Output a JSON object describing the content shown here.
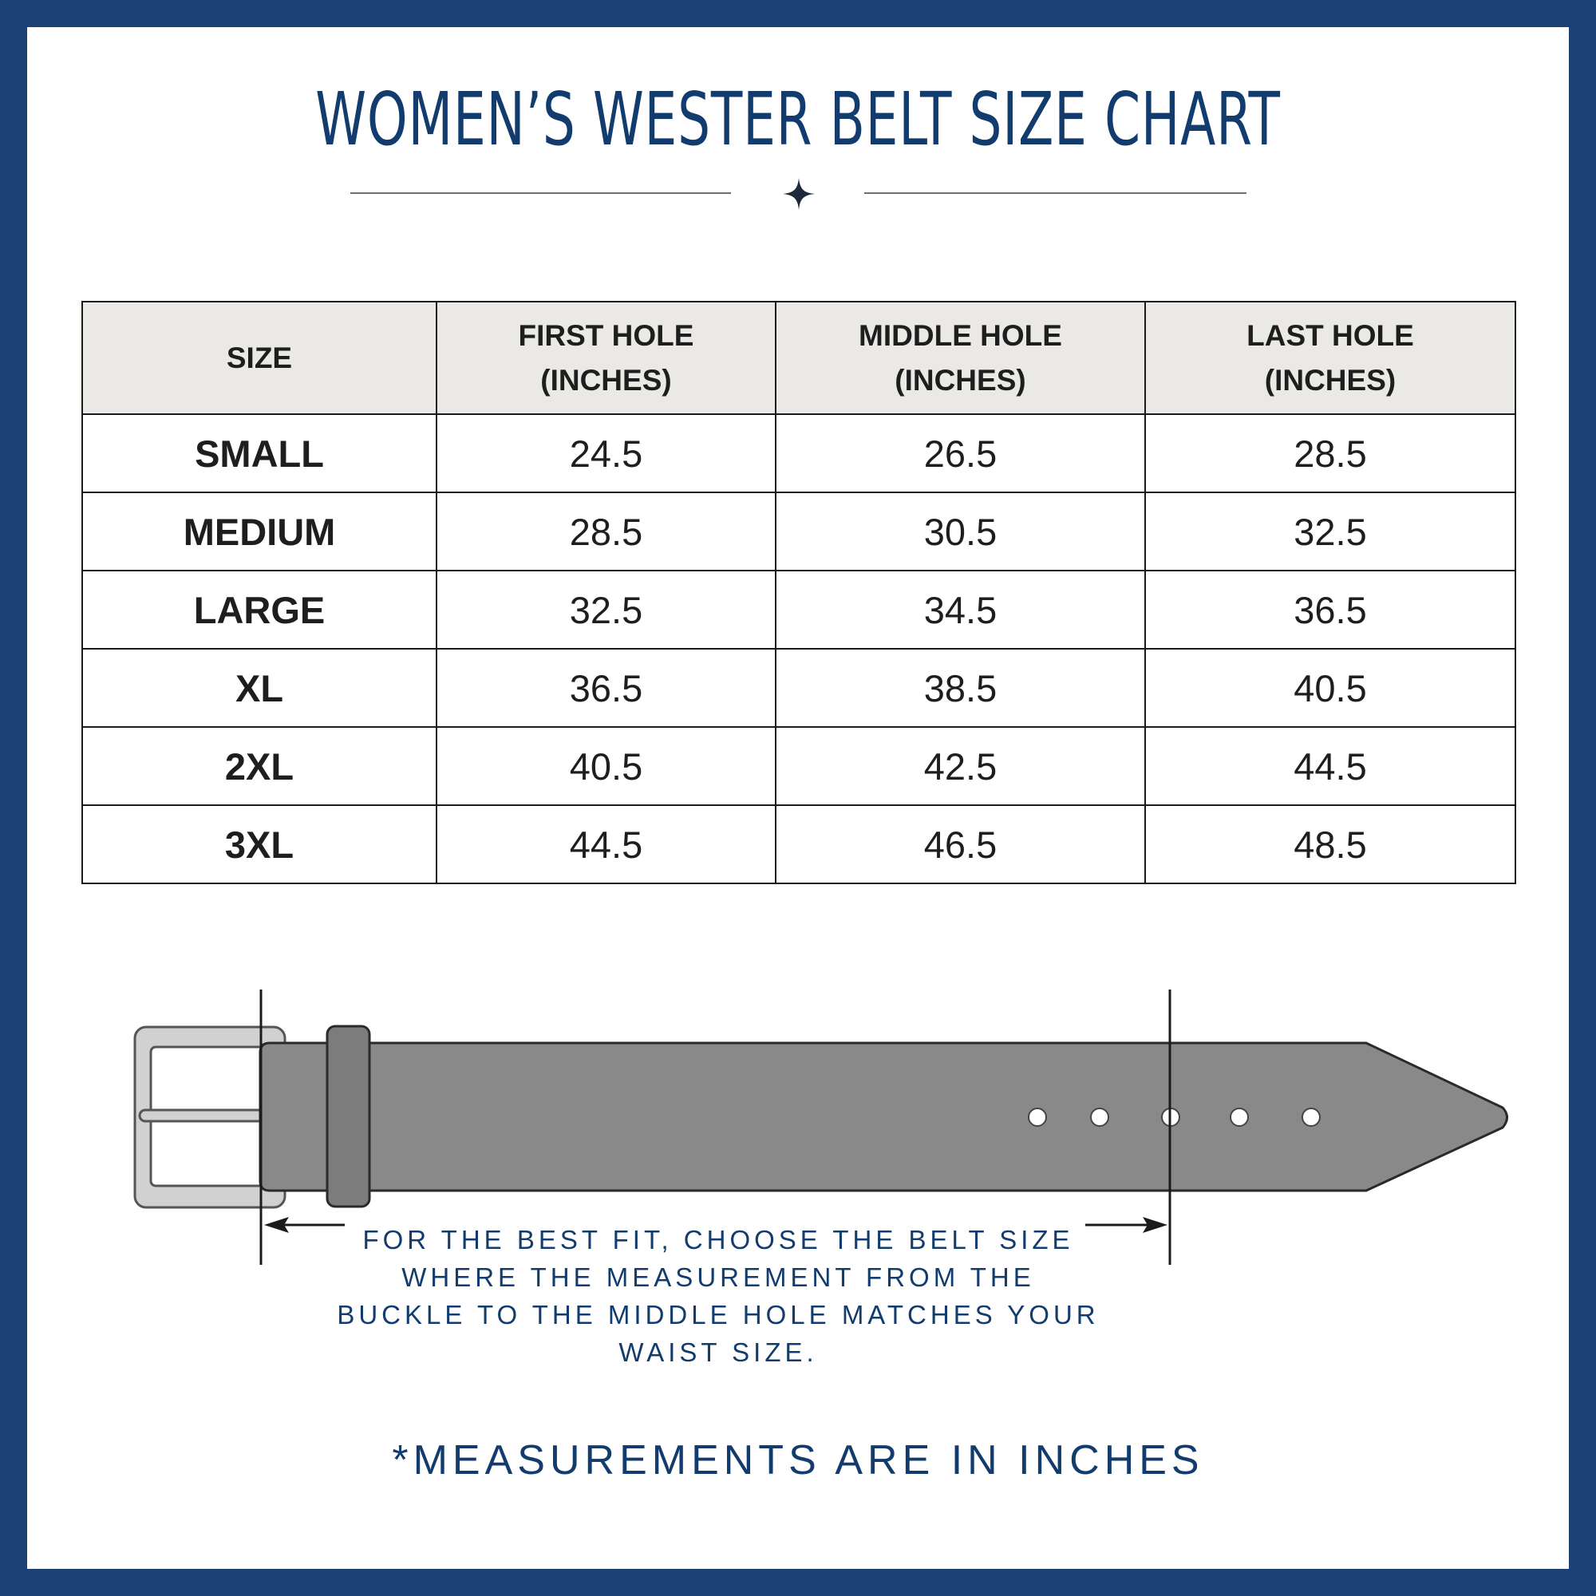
{
  "title": "WOMEN’S WESTER BELT SIZE CHART",
  "table": {
    "headers": [
      {
        "line1": "SIZE",
        "line2": ""
      },
      {
        "line1": "FIRST HOLE",
        "line2": "(INCHES)"
      },
      {
        "line1": "MIDDLE HOLE",
        "line2": "(INCHES)"
      },
      {
        "line1": "LAST HOLE",
        "line2": "(INCHES)"
      }
    ],
    "rows": [
      {
        "size": "SMALL",
        "first": "24.5",
        "middle": "26.5",
        "last": "28.5"
      },
      {
        "size": "MEDIUM",
        "first": "28.5",
        "middle": "30.5",
        "last": "32.5"
      },
      {
        "size": "LARGE",
        "first": "32.5",
        "middle": "34.5",
        "last": "36.5"
      },
      {
        "size": "XL",
        "first": "36.5",
        "middle": "38.5",
        "last": "40.5"
      },
      {
        "size": "2XL",
        "first": "40.5",
        "middle": "42.5",
        "last": "44.5"
      },
      {
        "size": "3XL",
        "first": "44.5",
        "middle": "46.5",
        "last": "48.5"
      }
    ]
  },
  "instructions": "FOR THE BEST FIT, CHOOSE THE BELT SIZE WHERE THE MEASUREMENT FROM THE BUCKLE TO THE MIDDLE HOLE MATCHES YOUR WAIST SIZE.",
  "footnote": "*MEASUREMENTS ARE IN INCHES",
  "colors": {
    "frame": "#1b4178",
    "title_text": "#123c6e",
    "header_fill": "#ebe9e6",
    "belt_strap": "#898989",
    "buckle": "#d1d1d1"
  },
  "icons": [
    "sparkle-star-icon",
    "belt-illustration",
    "arrow-left-icon",
    "arrow-right-icon"
  ]
}
